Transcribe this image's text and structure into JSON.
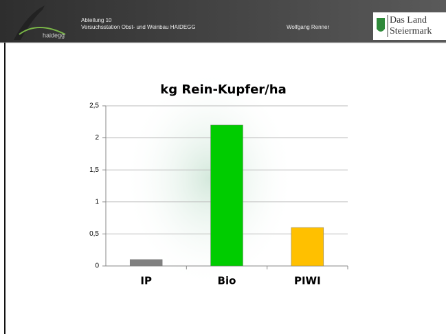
{
  "header": {
    "logo_text": "haidegg",
    "department": "Abteilung 10",
    "station": "Versuchsstation Obst- und Weinbau HAIDEGG",
    "author": "Wolfgang Renner",
    "brand_line1": "Das Land",
    "brand_line2": "Steiermark"
  },
  "chart_data": {
    "type": "bar",
    "title": "kg Rein-Kupfer/ha",
    "categories": [
      "IP",
      "Bio",
      "PIWI"
    ],
    "values": [
      0.1,
      2.2,
      0.6
    ],
    "colors": [
      "#808080",
      "#00cc00",
      "#ffc000"
    ],
    "ylim": [
      0,
      2.5
    ],
    "yticks": [
      0,
      {
        "value": 0.5,
        "label": "0,5"
      },
      1,
      {
        "value": 1.5,
        "label": "1,5"
      },
      2,
      {
        "value": 2.5,
        "label": "2,5"
      }
    ],
    "grid": true
  }
}
